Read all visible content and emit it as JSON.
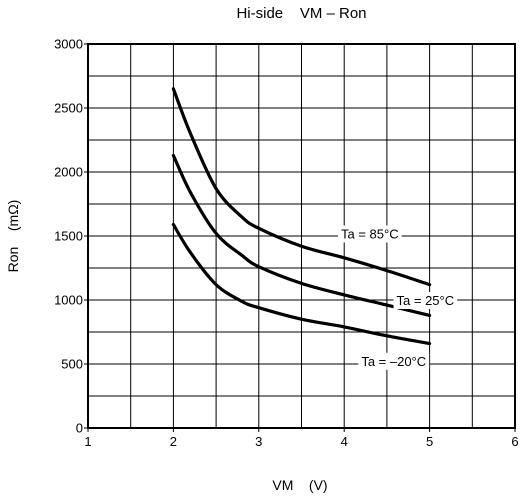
{
  "chart_data": {
    "type": "line",
    "title": "Hi-side    VM – Ron",
    "xlabel": "VM    (V)",
    "ylabel": "Ron    (mΩ)",
    "xlim": [
      1,
      6
    ],
    "ylim": [
      0,
      3000
    ],
    "x_ticks": [
      "1",
      "2",
      "3",
      "4",
      "5",
      "6"
    ],
    "y_ticks": [
      "0",
      "500",
      "1000",
      "1500",
      "2000",
      "2500",
      "3000"
    ],
    "x_minor_step": 0.5,
    "y_minor_step": 250,
    "grid": true,
    "series": [
      {
        "name": "Ta = 85°C",
        "x": [
          2.0,
          2.2,
          2.5,
          2.8,
          3.0,
          3.5,
          4.0,
          4.5,
          5.0
        ],
        "y": [
          2650,
          2300,
          1870,
          1650,
          1560,
          1420,
          1330,
          1230,
          1120
        ],
        "label_at": [
          4.3,
          1520
        ]
      },
      {
        "name": "Ta = 25°C",
        "x": [
          2.0,
          2.2,
          2.5,
          2.8,
          3.0,
          3.5,
          4.0,
          4.5,
          5.0
        ],
        "y": [
          2130,
          1840,
          1520,
          1350,
          1260,
          1130,
          1040,
          960,
          880
        ],
        "label_at": [
          4.95,
          1000
        ]
      },
      {
        "name": "Ta = –20°C",
        "x": [
          2.0,
          2.2,
          2.5,
          2.8,
          3.0,
          3.5,
          4.0,
          4.5,
          5.0
        ],
        "y": [
          1590,
          1370,
          1120,
          990,
          940,
          850,
          790,
          720,
          660
        ],
        "label_at": [
          4.58,
          525
        ]
      }
    ]
  }
}
